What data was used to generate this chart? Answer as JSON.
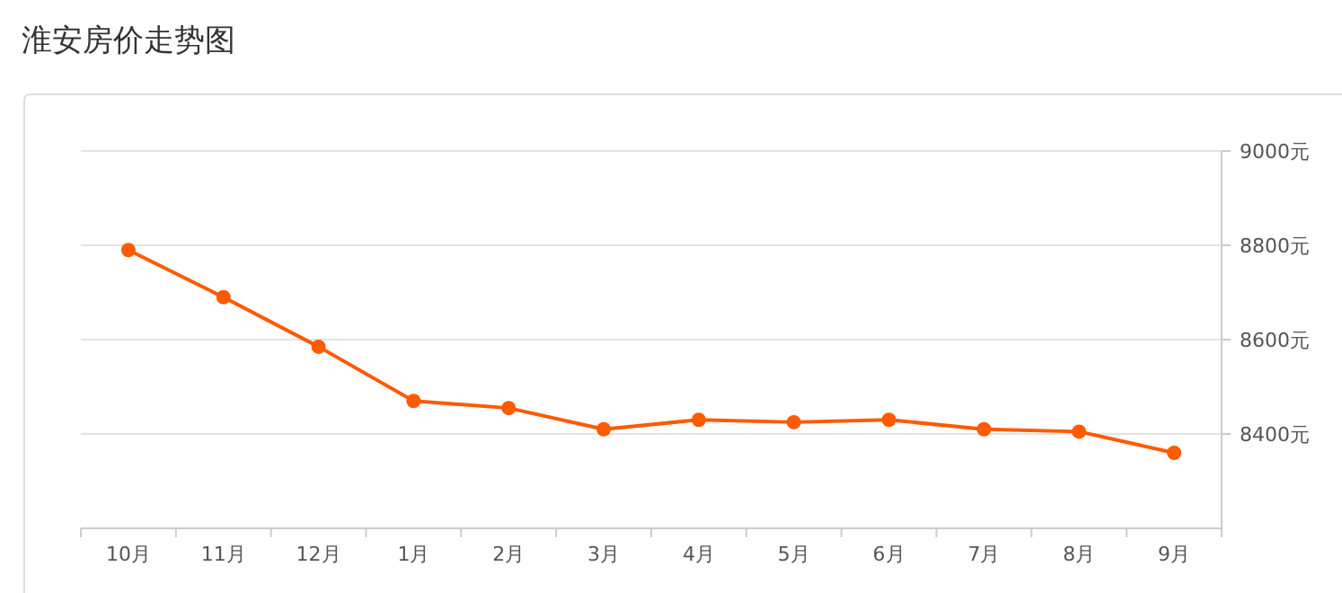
{
  "chart_data": {
    "type": "line",
    "title": "淮安房价走势图",
    "categories": [
      "10月",
      "11月",
      "12月",
      "1月",
      "2月",
      "3月",
      "4月",
      "5月",
      "6月",
      "7月",
      "8月",
      "9月"
    ],
    "series": [
      {
        "color": "#ff5a00",
        "values": [
          8790,
          8690,
          8585,
          8470,
          8455,
          8410,
          8430,
          8425,
          8430,
          8410,
          8405,
          8360
        ]
      }
    ],
    "ylim": [
      8200,
      9000
    ],
    "yticks": [
      {
        "value": 8400,
        "label": "8400元"
      },
      {
        "value": 8600,
        "label": "8600元"
      },
      {
        "value": 8800,
        "label": "8800元"
      },
      {
        "value": 9000,
        "label": "9000元"
      }
    ],
    "grid": "y",
    "marker": "circle",
    "line_style": "solid"
  }
}
